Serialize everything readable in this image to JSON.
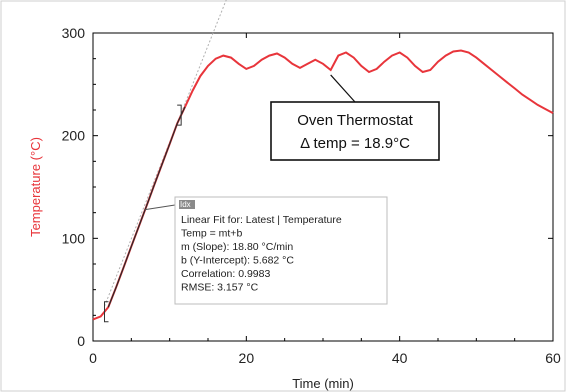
{
  "chart_data": {
    "type": "line",
    "title": "",
    "xlabel": "Time (min)",
    "ylabel": "Temperature (°C)",
    "xlim": [
      0,
      60
    ],
    "ylim": [
      0,
      300
    ],
    "xticks": [
      0,
      20,
      40,
      60
    ],
    "yticks": [
      0,
      100,
      200,
      300
    ],
    "grid": false,
    "series": [
      {
        "color": "#e8353b",
        "x": [
          0,
          1,
          2,
          3,
          4,
          5,
          6,
          7,
          8,
          9,
          10,
          11,
          12,
          13,
          14,
          15,
          16,
          17,
          18,
          19,
          20,
          21,
          22,
          23,
          24,
          25,
          26,
          27,
          28,
          29,
          30,
          31,
          32,
          33,
          34,
          35,
          36,
          37,
          38,
          39,
          40,
          41,
          42,
          43,
          44,
          45,
          46,
          47,
          48,
          49,
          50,
          51,
          52,
          53,
          54,
          55,
          56,
          57,
          58,
          59,
          60
        ],
        "y": [
          21,
          24,
          33,
          52,
          72,
          92,
          112,
          132,
          152,
          172,
          192,
          212,
          228,
          244,
          258,
          268,
          275,
          278,
          276,
          270,
          265,
          268,
          274,
          278,
          280,
          276,
          270,
          266,
          270,
          274,
          270,
          264,
          278,
          281,
          276,
          268,
          262,
          265,
          272,
          278,
          281,
          276,
          268,
          262,
          264,
          272,
          278,
          282,
          283,
          281,
          276,
          270,
          264,
          258,
          252,
          246,
          240,
          235,
          230,
          226,
          222
        ]
      }
    ],
    "fit_line": {
      "color": "#b0b0b0",
      "x": [
        1.5,
        13
      ],
      "y": [
        33.9,
        250
      ]
    },
    "fit_range": {
      "x_start": 1.5,
      "x_end": 11.5
    },
    "fit_box": {
      "tag": "Idx",
      "lines": [
        "Linear Fit for: Latest | Temperature",
        "Temp = mt+b",
        "m (Slope): 18.80 °C/min",
        "b (Y-Intercept): 5.682 °C",
        "Correlation: 0.9983",
        "RMSE: 3.157 °C"
      ]
    },
    "annotation": {
      "line1": "Oven Thermostat",
      "line2": "Δ temp = 18.9°C",
      "points_to": {
        "x": 31,
        "y": 265
      }
    },
    "ylabel_color": "#e8353b",
    "line_color": "#e8353b"
  }
}
